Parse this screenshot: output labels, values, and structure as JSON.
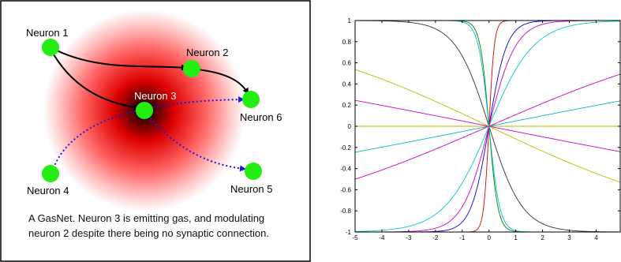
{
  "diagram": {
    "neurons": [
      {
        "id": "n1",
        "label": "Neuron 1"
      },
      {
        "id": "n2",
        "label": "Neuron 2"
      },
      {
        "id": "n3",
        "label": "Neuron 3"
      },
      {
        "id": "n4",
        "label": "Neuron 4"
      },
      {
        "id": "n5",
        "label": "Neuron 5"
      },
      {
        "id": "n6",
        "label": "Neuron 6"
      }
    ],
    "connections": [
      {
        "from": "Neuron 1",
        "to": "Neuron 2",
        "style": "solid"
      },
      {
        "from": "Neuron 1",
        "to": "Neuron 3",
        "style": "solid"
      },
      {
        "from": "Neuron 2",
        "to": "Neuron 6",
        "style": "solid"
      },
      {
        "from": "Neuron 4",
        "to": "Neuron 6",
        "style": "dotted"
      },
      {
        "from": "Neuron 3",
        "to": "Neuron 5",
        "style": "dotted"
      }
    ],
    "caption_line1": "A GasNet. Neuron 3 is emitting gas, and modulating",
    "caption_line2": "neuron 2 despite there being no synaptic connection.",
    "colors": {
      "neuron": "#22ee11",
      "gas": "#ee0000",
      "synapse": "#000000",
      "modulation": "#1a1adc"
    }
  },
  "chart_data": {
    "type": "line",
    "title": "",
    "xlabel": "",
    "ylabel": "",
    "xlim": [
      -5,
      5
    ],
    "ylim": [
      -1,
      1
    ],
    "x_ticks": [
      "-5",
      "-4",
      "-3",
      "-2",
      "-1",
      "0",
      "1",
      "2",
      "3",
      "4"
    ],
    "y_ticks": [
      "1",
      "0.8",
      "0.6",
      "0.4",
      "0.2",
      "0",
      "-0.2",
      "-0.4",
      "-0.6",
      "-0.8",
      "-1"
    ],
    "function": "tanh(k*x)",
    "series": [
      {
        "k": 0.0,
        "color": "#bbbb00"
      },
      {
        "k": -0.05,
        "color": "#cc00cc"
      },
      {
        "k": 0.05,
        "color": "#00bbbb"
      },
      {
        "k": 0.11,
        "color": "#cc00cc"
      },
      {
        "k": -0.12,
        "color": "#bbbb00"
      },
      {
        "k": 0.6,
        "color": "#00cccc"
      },
      {
        "k": -0.8,
        "color": "#333333"
      },
      {
        "k": 1.5,
        "color": "#0000dd"
      },
      {
        "k": -3.0,
        "color": "#008800"
      },
      {
        "k": 5.0,
        "color": "#dd0000"
      },
      {
        "k": 1.0,
        "color": "#cc00cc"
      },
      {
        "k": -2.5,
        "color": "#00bbbb"
      }
    ]
  }
}
